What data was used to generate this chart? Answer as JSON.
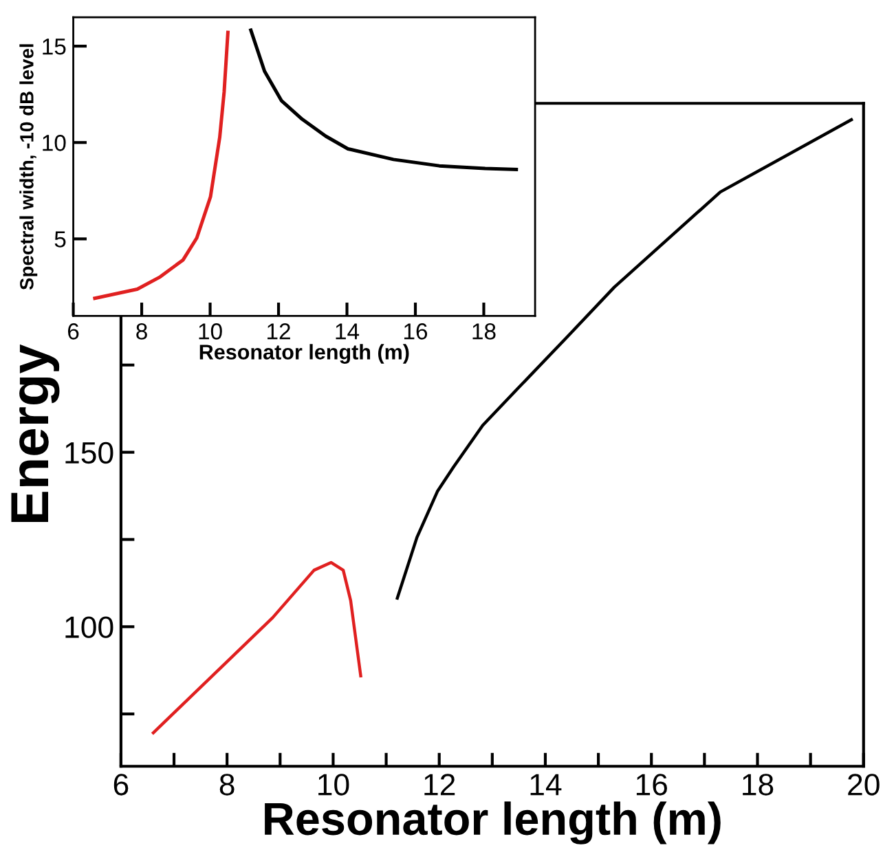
{
  "chart_data": [
    {
      "type": "line",
      "xlabel": "Resonator length (m)",
      "ylabel": "Energy",
      "xlim": [
        6,
        20
      ],
      "ylim": [
        60,
        250
      ],
      "xticks": [
        6,
        {
          "value": 7,
          "label": null
        },
        8,
        {
          "value": 9,
          "label": null
        },
        10,
        {
          "value": 11,
          "label": null
        },
        12,
        {
          "value": 13,
          "label": null
        },
        14,
        {
          "value": 15,
          "label": null
        },
        16,
        {
          "value": 17,
          "label": null
        },
        18,
        {
          "value": 19,
          "label": null
        },
        20
      ],
      "yticks": [
        {
          "value": 75,
          "label": null
        },
        100,
        {
          "value": 125,
          "label": null
        },
        150,
        {
          "value": 175,
          "label": null
        }
      ],
      "grid": false,
      "legend": false,
      "series": [
        {
          "color": "#e02020",
          "x": [
            6.61,
            7.98,
            8.86,
            9.64,
            9.96,
            10.19,
            10.33,
            10.52
          ],
          "values": [
            69.6,
            89.7,
            102.6,
            116.2,
            118.4,
            116.2,
            107.5,
            85.9
          ]
        },
        {
          "color": "#000000",
          "x": [
            11.21,
            11.58,
            11.97,
            12.27,
            12.82,
            13.47,
            14.39,
            15.3,
            17.3,
            19.77
          ],
          "values": [
            108.2,
            125.6,
            138.9,
            145.8,
            157.7,
            168.1,
            182.7,
            197.3,
            224.6,
            245.3
          ]
        }
      ]
    },
    {
      "type": "line",
      "xlabel": "Resonator length (m)",
      "ylabel": "Spectral width, -10 dB level",
      "xlim": [
        6,
        19.5
      ],
      "ylim": [
        1,
        16.5
      ],
      "xticks": [
        6,
        8,
        10,
        12,
        14,
        16,
        18
      ],
      "yticks": [
        5,
        10,
        15
      ],
      "grid": false,
      "legend": false,
      "series": [
        {
          "color": "#e02020",
          "x": [
            6.63,
            7.87,
            8.54,
            9.21,
            9.61,
            10.01,
            10.28,
            10.41,
            10.52
          ],
          "values": [
            1.92,
            2.39,
            3.03,
            3.91,
            5.05,
            7.18,
            10.26,
            12.63,
            15.71
          ]
        },
        {
          "color": "#000000",
          "x": [
            11.19,
            11.59,
            12.09,
            12.69,
            13.38,
            14.03,
            15.36,
            16.7,
            18.04,
            18.95
          ],
          "values": [
            15.83,
            13.7,
            12.16,
            11.21,
            10.33,
            9.67,
            9.12,
            8.79,
            8.65,
            8.6
          ]
        }
      ]
    }
  ]
}
